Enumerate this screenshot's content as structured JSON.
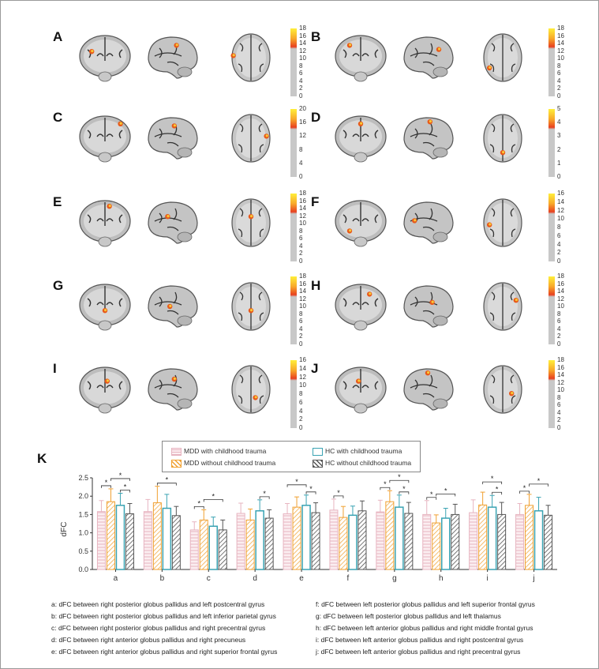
{
  "panels": [
    {
      "letter": "A",
      "ticks": [
        "18",
        "16",
        "14",
        "12",
        "10",
        "8",
        "6",
        "4",
        "2",
        "0"
      ]
    },
    {
      "letter": "B",
      "ticks": [
        "18",
        "16",
        "14",
        "12",
        "10",
        "8",
        "6",
        "4",
        "2",
        "0"
      ]
    },
    {
      "letter": "C",
      "ticks": [
        "20",
        "16",
        "12",
        "8",
        "4",
        "0"
      ]
    },
    {
      "letter": "D",
      "ticks": [
        "5",
        "4",
        "3",
        "2",
        "1",
        "0"
      ]
    },
    {
      "letter": "E",
      "ticks": [
        "18",
        "16",
        "14",
        "12",
        "10",
        "8",
        "6",
        "4",
        "2",
        "0"
      ]
    },
    {
      "letter": "F",
      "ticks": [
        "16",
        "14",
        "12",
        "10",
        "8",
        "6",
        "4",
        "2",
        "0"
      ]
    },
    {
      "letter": "G",
      "ticks": [
        "18",
        "16",
        "14",
        "12",
        "10",
        "8",
        "6",
        "4",
        "2",
        "0"
      ]
    },
    {
      "letter": "H",
      "ticks": [
        "18",
        "16",
        "14",
        "12",
        "10",
        "8",
        "6",
        "4",
        "2",
        "0"
      ]
    },
    {
      "letter": "I",
      "ticks": [
        "16",
        "14",
        "12",
        "10",
        "8",
        "6",
        "4",
        "2",
        "0"
      ]
    },
    {
      "letter": "J",
      "ticks": [
        "18",
        "16",
        "14",
        "12",
        "10",
        "8",
        "6",
        "4",
        "2",
        "0"
      ]
    }
  ],
  "panel_k_letter": "K",
  "legend": [
    {
      "label": "MDD with childhood trauma",
      "color": "#e7b4c0"
    },
    {
      "label": "HC with childhood trauma",
      "color": "#3aa3b3"
    },
    {
      "label": "MDD without childhood trauma",
      "color": "#f0a030"
    },
    {
      "label": "HC without childhood trauma",
      "color": "#555555"
    }
  ],
  "chart_data": {
    "type": "bar",
    "ylabel": "dFC",
    "ylim": [
      0,
      2.5
    ],
    "yticks": [
      "0.0",
      "0.5",
      "1.0",
      "1.5",
      "2.0",
      "2.5"
    ],
    "categories": [
      "a",
      "b",
      "c",
      "d",
      "e",
      "f",
      "g",
      "h",
      "i",
      "j"
    ],
    "series": [
      {
        "name": "MDD with childhood trauma",
        "values": [
          1.58,
          1.58,
          1.08,
          1.53,
          1.52,
          1.62,
          1.57,
          1.5,
          1.55,
          1.5
        ],
        "errors": [
          0.3,
          0.33,
          0.22,
          0.28,
          0.28,
          0.3,
          0.32,
          0.38,
          0.35,
          0.3
        ]
      },
      {
        "name": "MDD without childhood trauma",
        "values": [
          1.85,
          1.82,
          1.35,
          1.35,
          1.7,
          1.42,
          1.85,
          1.27,
          1.76,
          1.75
        ],
        "errors": [
          0.35,
          0.45,
          0.28,
          0.3,
          0.28,
          0.3,
          0.3,
          0.22,
          0.35,
          0.3
        ]
      },
      {
        "name": "HC with childhood trauma",
        "values": [
          1.75,
          1.67,
          1.18,
          1.6,
          1.75,
          1.48,
          1.7,
          1.4,
          1.7,
          1.6
        ],
        "errors": [
          0.33,
          0.38,
          0.25,
          0.3,
          0.28,
          0.25,
          0.33,
          0.27,
          0.32,
          0.37
        ]
      },
      {
        "name": "HC without childhood trauma",
        "values": [
          1.52,
          1.47,
          1.08,
          1.4,
          1.55,
          1.6,
          1.53,
          1.5,
          1.5,
          1.48
        ],
        "errors": [
          0.28,
          0.25,
          0.27,
          0.23,
          0.27,
          0.27,
          0.3,
          0.28,
          0.33,
          0.27
        ]
      }
    ],
    "significance": "*",
    "brackets": [
      {
        "cat": 0,
        "from": 0,
        "to": 1,
        "level": 0
      },
      {
        "cat": 0,
        "from": 1,
        "to": 3,
        "level": 1
      },
      {
        "cat": 0,
        "from": 2,
        "to": 3,
        "level": 0
      },
      {
        "cat": 1,
        "from": 1,
        "to": 3,
        "level": 0
      },
      {
        "cat": 2,
        "from": 0,
        "to": 1,
        "level": 0
      },
      {
        "cat": 2,
        "from": 1,
        "to": 3,
        "level": 1
      },
      {
        "cat": 3,
        "from": 2,
        "to": 3,
        "level": 0
      },
      {
        "cat": 4,
        "from": 0,
        "to": 2,
        "level": 1
      },
      {
        "cat": 4,
        "from": 2,
        "to": 3,
        "level": 0
      },
      {
        "cat": 5,
        "from": 0,
        "to": 1,
        "level": 0
      },
      {
        "cat": 6,
        "from": 0,
        "to": 1,
        "level": 0
      },
      {
        "cat": 6,
        "from": 1,
        "to": 3,
        "level": 1
      },
      {
        "cat": 6,
        "from": 2,
        "to": 3,
        "level": 0
      },
      {
        "cat": 7,
        "from": 0,
        "to": 1,
        "level": 0
      },
      {
        "cat": 7,
        "from": 1,
        "to": 3,
        "level": 1
      },
      {
        "cat": 8,
        "from": 1,
        "to": 3,
        "level": 1
      },
      {
        "cat": 8,
        "from": 2,
        "to": 3,
        "level": 0
      },
      {
        "cat": 9,
        "from": 0,
        "to": 1,
        "level": 0
      },
      {
        "cat": 9,
        "from": 1,
        "to": 3,
        "level": 1
      }
    ]
  },
  "footnotes_left": [
    "a: dFC between right posterior globus pallidus and left postcentral gyrus",
    "b: dFC between right posterior globus pallidus and left inferior parietal gyrus",
    "c: dFC between right posterior globus pallidus and right precentral gyrus",
    "d: dFC between right anterior globus pallidus and right precuneus",
    "e: dFC between right anterior globus pallidus and right superior frontal gyrus"
  ],
  "footnotes_right": [
    "f: dFC between left posterior globus pallidus and left superior frontal gyrus",
    "g: dFC between left posterior globus pallidus and left thalamus",
    "h: dFC between left anterior globus pallidus and right middle frontal gyrus",
    "i: dFC between left anterior globus pallidus and right postcentral gyrus",
    "j: dFC between left anterior globus pallidus and right precentral gyrus"
  ]
}
